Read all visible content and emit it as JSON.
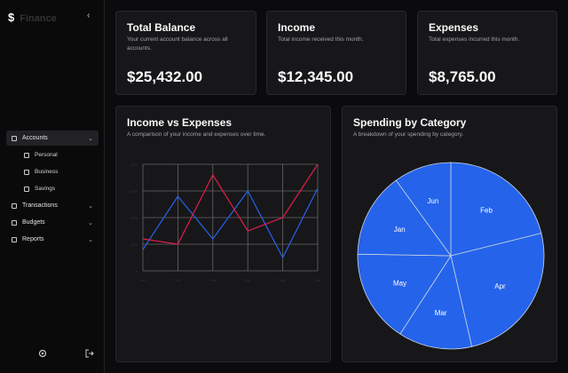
{
  "sidebar": {
    "brand": "Finance",
    "nav": [
      {
        "label": "Accounts",
        "children": [
          "Personal",
          "Business",
          "Savings"
        ]
      },
      {
        "label": "Transactions"
      },
      {
        "label": "Budgets"
      },
      {
        "label": "Reports"
      }
    ]
  },
  "cards": [
    {
      "title": "Total Balance",
      "description": "Your current account balance across all accounts.",
      "value": "$25,432.00"
    },
    {
      "title": "Income",
      "description": "Total income received this month.",
      "value": "$12,345.00"
    },
    {
      "title": "Expenses",
      "description": "Total expenses incurred this month.",
      "value": "$8,765.00"
    }
  ],
  "chart_data": [
    {
      "type": "line",
      "title": "Income vs Expenses",
      "subtitle": "A comparison of your income and expenses over time.",
      "categories": [
        "Jan",
        "Feb",
        "Mar",
        "Apr",
        "May",
        "Jun"
      ],
      "series": [
        {
          "color": "#2563eb",
          "values": [
            800,
            2800,
            1200,
            3000,
            500,
            3100
          ]
        },
        {
          "color": "#e11d48",
          "values": [
            1200,
            1000,
            3600,
            1500,
            2000,
            4000
          ]
        }
      ],
      "ylim": [
        0,
        4000
      ],
      "yticks": [
        0,
        1000,
        2000,
        3000,
        4000
      ],
      "grid": true
    },
    {
      "type": "pie",
      "title": "Spending by Category",
      "subtitle": "A breakdown of your spending by category.",
      "categories": [
        "Feb",
        "Apr",
        "Mar",
        "May",
        "Jan",
        "Jun"
      ],
      "values": [
        76,
        91,
        46,
        58,
        53,
        36
      ],
      "color": "#2563eb"
    }
  ]
}
